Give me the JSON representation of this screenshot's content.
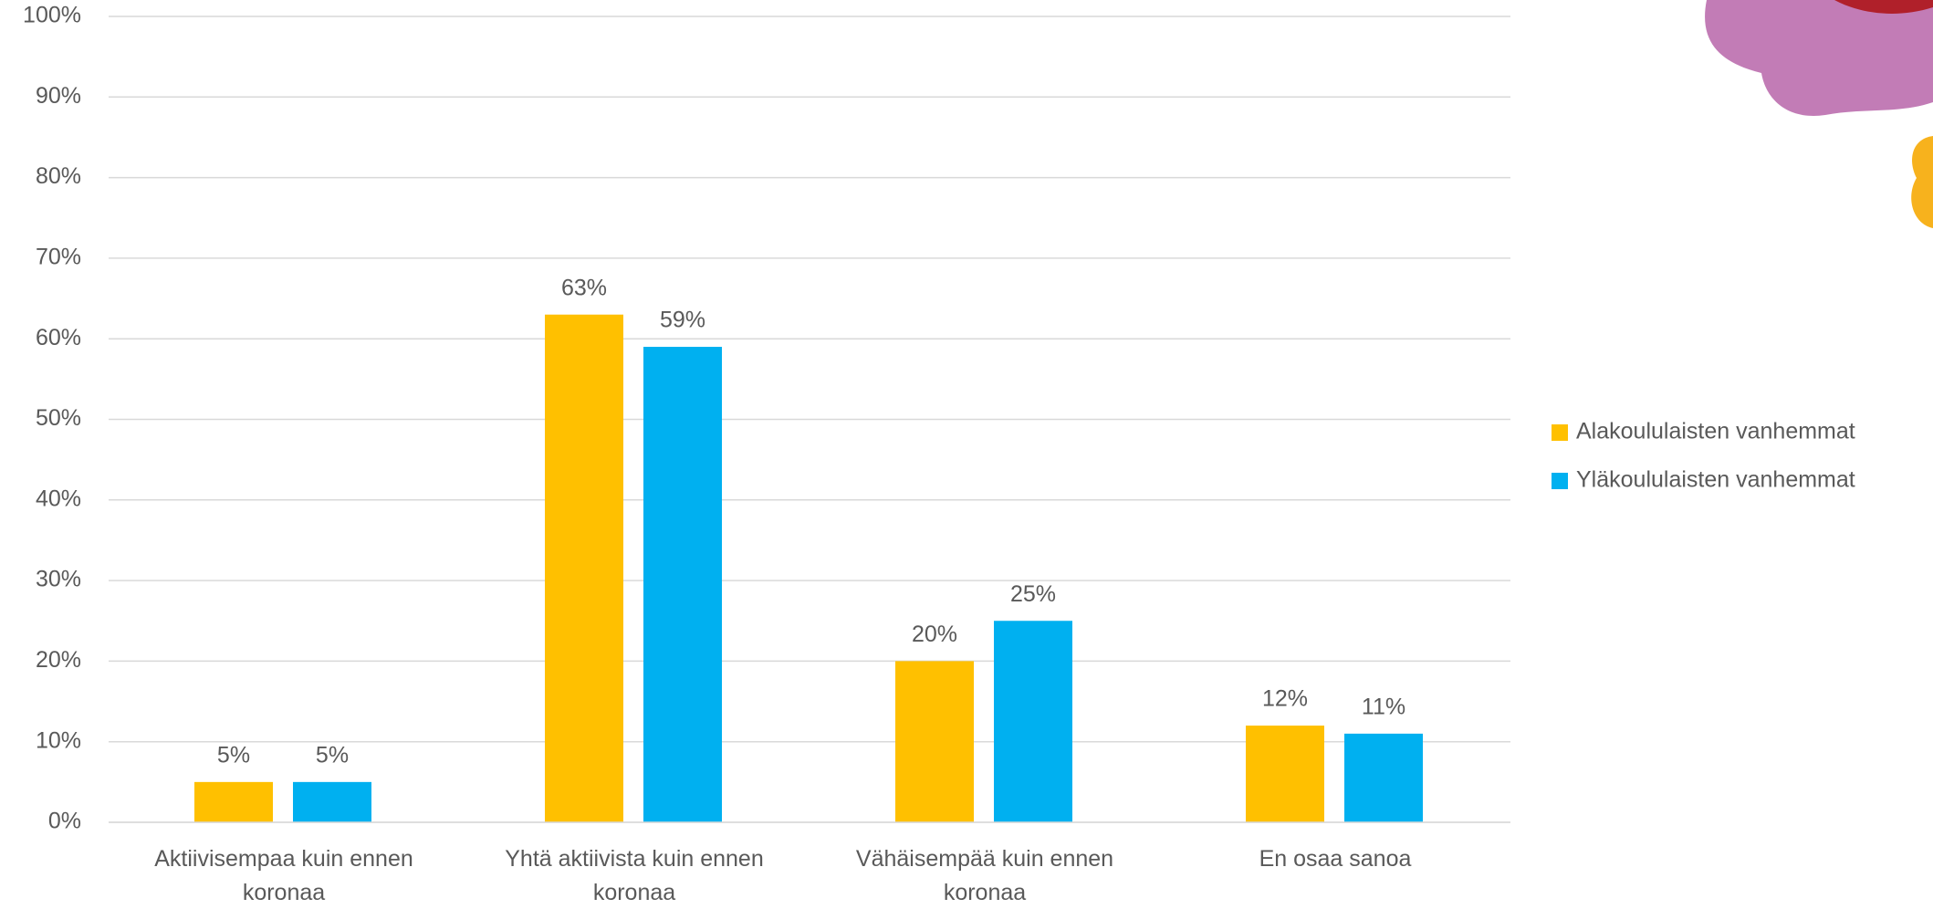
{
  "chart_data": {
    "type": "bar",
    "categories": [
      "Aktiivisempaa kuin ennen koronaa",
      "Yhtä aktiivista kuin ennen koronaa",
      "Vähäisempää kuin ennen koronaa",
      "En osaa sanoa"
    ],
    "series": [
      {
        "name": "Alakoululaisten vanhemmat",
        "color": "#FFC000",
        "values": [
          5,
          63,
          20,
          12
        ],
        "value_labels": [
          "5%",
          "63%",
          "20%",
          "12%"
        ]
      },
      {
        "name": "Yläkoululaisten vanhemmat",
        "color": "#00B0F0",
        "values": [
          5,
          59,
          25,
          11
        ],
        "value_labels": [
          "5%",
          "59%",
          "25%",
          "11%"
        ]
      }
    ],
    "ylim": [
      0,
      100
    ],
    "yticks": [
      {
        "value": 0,
        "label": "0%"
      },
      {
        "value": 10,
        "label": "10%"
      },
      {
        "value": 20,
        "label": "20%"
      },
      {
        "value": 30,
        "label": "30%"
      },
      {
        "value": 40,
        "label": "40%"
      },
      {
        "value": 50,
        "label": "50%"
      },
      {
        "value": 60,
        "label": "60%"
      },
      {
        "value": 70,
        "label": "70%"
      },
      {
        "value": 80,
        "label": "80%"
      },
      {
        "value": 90,
        "label": "90%"
      },
      {
        "value": 100,
        "label": "100%"
      }
    ],
    "grid": true,
    "legend": "right"
  }
}
